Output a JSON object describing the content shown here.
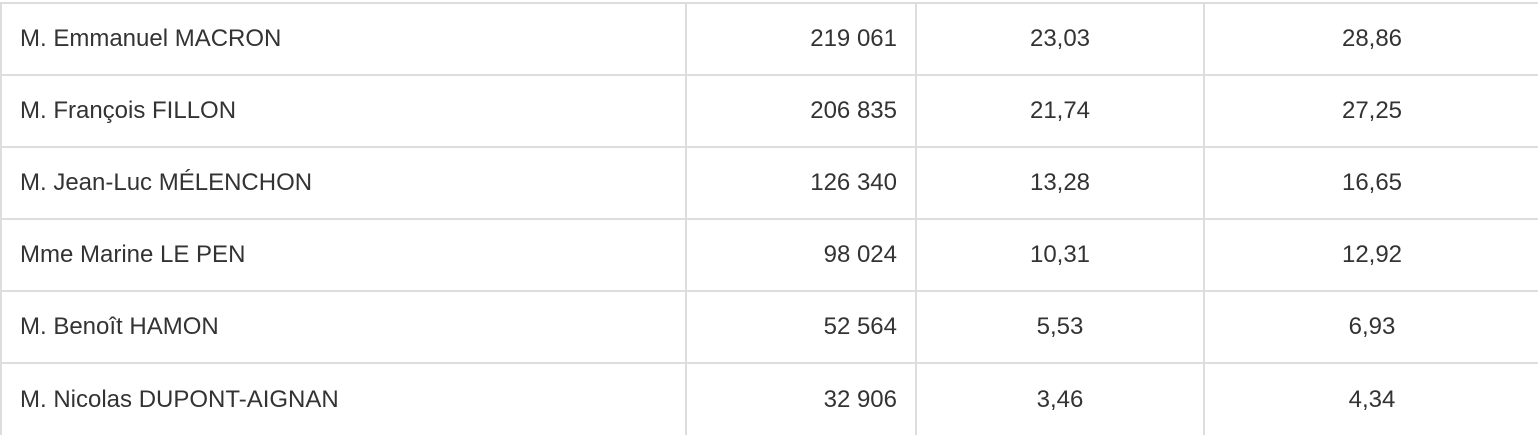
{
  "rows": [
    {
      "name": "M. Emmanuel MACRON",
      "votes": "219 061",
      "pct_registered": "23,03",
      "pct_cast": "28,86"
    },
    {
      "name": "M. François FILLON",
      "votes": "206 835",
      "pct_registered": "21,74",
      "pct_cast": "27,25"
    },
    {
      "name": "M. Jean-Luc MÉLENCHON",
      "votes": "126 340",
      "pct_registered": "13,28",
      "pct_cast": "16,65"
    },
    {
      "name": "Mme Marine LE PEN",
      "votes": "98 024",
      "pct_registered": "10,31",
      "pct_cast": "12,92"
    },
    {
      "name": "M. Benoît HAMON",
      "votes": "52 564",
      "pct_registered": "5,53",
      "pct_cast": "6,93"
    },
    {
      "name": "M. Nicolas DUPONT-AIGNAN",
      "votes": "32 906",
      "pct_registered": "3,46",
      "pct_cast": "4,34"
    }
  ]
}
